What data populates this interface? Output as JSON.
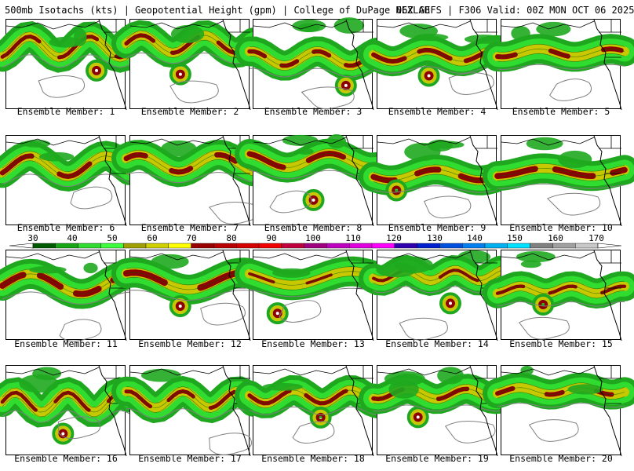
{
  "header": {
    "left": "500mb Isotachs (kts) | Geopotential Height (gpm) | College of DuPage NEXLAB",
    "right": "06Z GEFS | F306 Valid: 00Z MON OCT 06 2025"
  },
  "colorbar": {
    "labels": [
      "30",
      "40",
      "50",
      "60",
      "70",
      "80",
      "90",
      "100",
      "110",
      "120",
      "130",
      "140",
      "150",
      "160",
      "170"
    ],
    "colors": [
      "#005a00",
      "#16a616",
      "#2fdc2f",
      "#3cff3c",
      "#a0a000",
      "#d0d000",
      "#ffff00",
      "#9a0000",
      "#b80000",
      "#d40000",
      "#f00000",
      "#c0003c",
      "#a00080",
      "#c000c0",
      "#e000e0",
      "#ff00ff",
      "#3000b0",
      "#0020d0",
      "#0050e0",
      "#0080f0",
      "#00b0f0",
      "#00e0ff",
      "#808080",
      "#a0a0a0",
      "#c8c8c8"
    ]
  },
  "members": [
    {
      "label": "Ensemble Member: 1"
    },
    {
      "label": "Ensemble Member: 2"
    },
    {
      "label": "Ensemble Member: 3"
    },
    {
      "label": "Ensemble Member: 4"
    },
    {
      "label": "Ensemble Member: 5"
    },
    {
      "label": "Ensemble Member: 6"
    },
    {
      "label": "Ensemble Member: 7"
    },
    {
      "label": "Ensemble Member: 8"
    },
    {
      "label": "Ensemble Member: 9"
    },
    {
      "label": "Ensemble Member: 10"
    },
    {
      "label": "Ensemble Member: 11"
    },
    {
      "label": "Ensemble Member: 12"
    },
    {
      "label": "Ensemble Member: 13"
    },
    {
      "label": "Ensemble Member: 14"
    },
    {
      "label": "Ensemble Member: 15"
    },
    {
      "label": "Ensemble Member: 16"
    },
    {
      "label": "Ensemble Member: 17"
    },
    {
      "label": "Ensemble Member: 18"
    },
    {
      "label": "Ensemble Member: 19"
    },
    {
      "label": "Ensemble Member: 20"
    }
  ],
  "colors": {
    "jet_low": "#1fa81f",
    "jet_mid": "#2fdc2f",
    "jet_yellow": "#c8c800",
    "jet_core": "#8c0000",
    "coast": "#000000",
    "height_contour": "#808080"
  }
}
